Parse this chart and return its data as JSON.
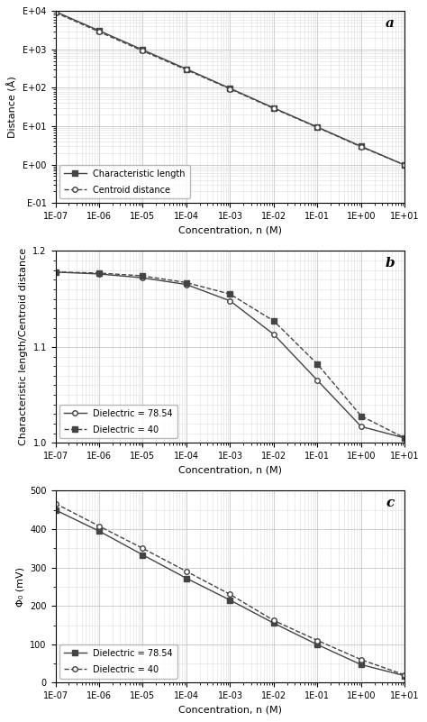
{
  "fig_width": 4.74,
  "fig_height": 8.01,
  "dpi": 100,
  "background_color": "#ffffff",
  "grid_major_color": "#bbbbbb",
  "grid_minor_color": "#dddddd",
  "panel_a": {
    "label": "a",
    "xlabel": "Concentration, n (M)",
    "ylabel": "Distance (Å)",
    "xlim": [
      1e-07,
      10.0
    ],
    "ylim": [
      0.1,
      10000.0
    ],
    "x_data": [
      1e-07,
      1e-06,
      1e-05,
      0.0001,
      0.001,
      0.01,
      0.1,
      1.0,
      10.0
    ],
    "char_length_y": [
      9700,
      3100,
      980,
      310,
      97,
      30,
      9.5,
      3.0,
      0.97
    ],
    "centroid_y": [
      9200,
      2900,
      920,
      295,
      94,
      29,
      9.3,
      2.9,
      0.98
    ],
    "char_marker": "s",
    "centroid_marker": "o",
    "char_linestyle": "-",
    "centroid_linestyle": "--",
    "char_label": "Characteristic length",
    "centroid_label": "Centroid distance",
    "legend_loc": "lower left",
    "line_color": "#444444"
  },
  "panel_b": {
    "label": "b",
    "xlabel": "Concentration, n (M)",
    "ylabel": "Characteristic length/Centroid distance",
    "xlim": [
      1e-07,
      10.0
    ],
    "ylim": [
      1.0,
      1.2
    ],
    "x_data": [
      1e-07,
      1e-06,
      1e-05,
      0.0001,
      0.001,
      0.01,
      0.1,
      1.0,
      10.0
    ],
    "diel7854_y": [
      1.178,
      1.176,
      1.172,
      1.165,
      1.148,
      1.113,
      1.065,
      1.017,
      1.005
    ],
    "diel40_y": [
      1.178,
      1.177,
      1.174,
      1.167,
      1.155,
      1.127,
      1.082,
      1.028,
      1.005
    ],
    "diel7854_marker": "o",
    "diel40_marker": "s",
    "diel7854_linestyle": "-",
    "diel40_linestyle": "--",
    "diel7854_label": "Dielectric = 78.54",
    "diel40_label": "Dielectric = 40",
    "legend_loc": "lower left",
    "line_color": "#444444"
  },
  "panel_c": {
    "label": "c",
    "xlabel": "Concentration, n (M)",
    "ylabel": "Φ₀ (mV)",
    "xlim": [
      1e-07,
      10.0
    ],
    "ylim": [
      0,
      500
    ],
    "x_data": [
      1e-07,
      1e-06,
      1e-05,
      0.0001,
      0.001,
      0.01,
      0.1,
      1.0,
      10.0
    ],
    "diel7854_y": [
      450,
      395,
      333,
      272,
      215,
      155,
      99,
      47,
      18
    ],
    "diel40_y": [
      467,
      408,
      350,
      290,
      230,
      162,
      110,
      60,
      20
    ],
    "diel7854_marker": "s",
    "diel40_marker": "o",
    "diel7854_linestyle": "-",
    "diel40_linestyle": "--",
    "diel7854_label": "Dielectric = 78.54",
    "diel40_label": "Dielectric = 40",
    "legend_loc": "lower left",
    "line_color": "#444444"
  }
}
